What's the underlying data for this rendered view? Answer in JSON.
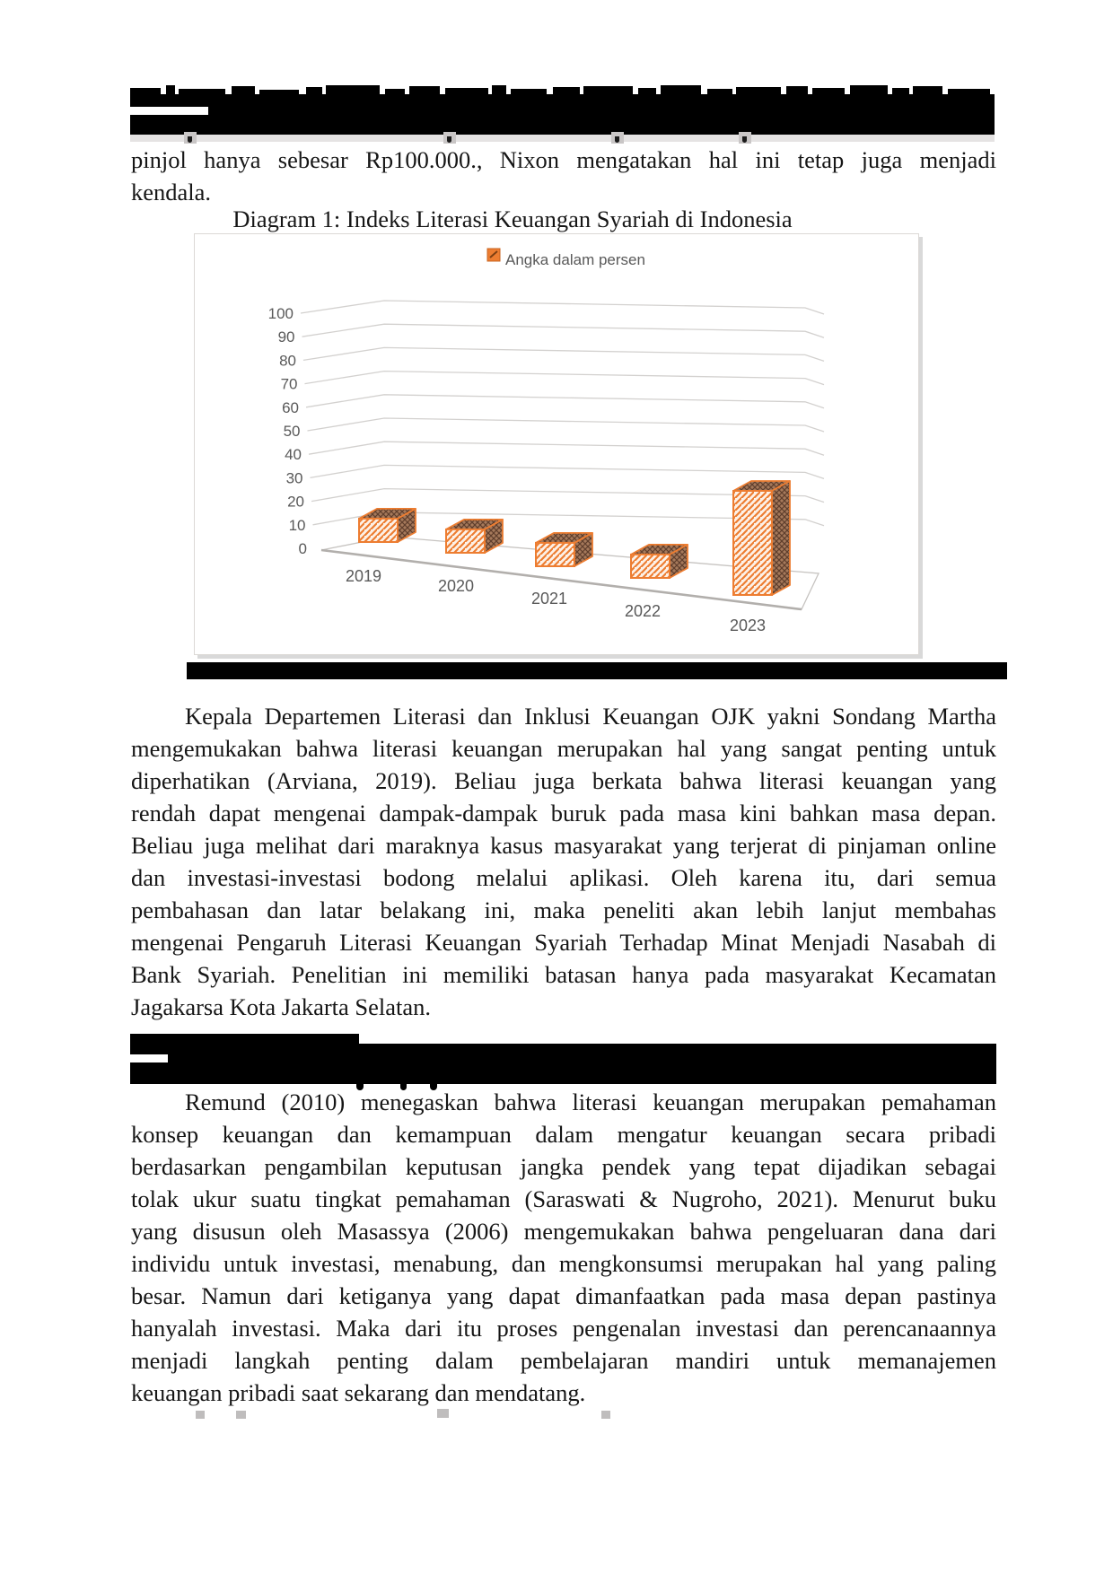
{
  "page": {
    "kind": "scanned-document-page",
    "background": "#ffffff"
  },
  "intro_paragraph": {
    "lines": [
      "pinjol hanya sebesar Rp100.000., Nixon mengatakan hal ini tetap juga menjadi",
      "kendala."
    ]
  },
  "figure": {
    "caption": "Diagram 1: Indeks Literasi Keuangan Syariah di Indonesia",
    "source_caption_redacted": true
  },
  "kepala_paragraph": {
    "lines": [
      "Kepala Departemen Literasi dan Inklusi Keuangan OJK yakni Sondang Martha",
      "mengemukakan bahwa literasi keuangan merupakan hal yang sangat penting untuk",
      "diperhatikan (Arviana, 2019). Beliau juga berkata bahwa literasi keuangan yang",
      "rendah dapat mengenai dampak-dampak buruk pada masa kini bahkan masa depan.",
      "Beliau juga melihat dari maraknya kasus masyarakat yang terjerat di pinjaman online",
      "dan investasi-investasi bodong melalui aplikasi. Oleh karena itu, dari semua",
      "pembahasan dan latar belakang ini, maka peneliti akan lebih lanjut membahas",
      "mengenai Pengaruh Literasi Keuangan Syariah Terhadap Minat Menjadi Nasabah di",
      "Bank Syariah. Penelitian ini memiliki batasan hanya pada masyarakat Kecamatan",
      "Jagakarsa Kota Jakarta Selatan."
    ]
  },
  "remund_paragraph": {
    "lines": [
      "Remund (2010) menegaskan bahwa literasi keuangan merupakan pemahaman",
      "konsep keuangan dan kemampuan dalam mengatur keuangan secara pribadi",
      "berdasarkan pengambilan keputusan jangka pendek yang tepat dijadikan sebagai",
      "tolak ukur suatu tingkat pemahaman (Saraswati & Nugroho, 2021). Menurut buku",
      "yang disusun oleh Masassya (2006) mengemukakan bahwa pengeluaran dana dari",
      "individu untuk investasi, menabung, dan mengkonsumsi merupakan hal yang paling",
      "besar. Namun dari ketiganya yang dapat dimanfaatkan pada masa depan pastinya",
      "hanyalah investasi. Maka dari itu proses pengenalan investasi dan perencanaannya",
      "menjadi langkah penting dalam pembelajaran mandiri untuk memanajemen",
      "keuangan pribadi saat sekarang dan mendatang."
    ]
  },
  "chart_data": {
    "type": "bar",
    "subtype": "3d-column",
    "title": "Diagram 1: Indeks Literasi Keuangan Syariah di Indonesia",
    "legend": [
      {
        "label": "Angka dalam persen",
        "color": "#ED7D31"
      }
    ],
    "legend_position": "top-center",
    "categories": [
      "2019",
      "2020",
      "2021",
      "2022",
      "2023"
    ],
    "values": [
      9,
      9,
      9,
      9,
      40
    ],
    "unit": "persen",
    "ylim": [
      0,
      100
    ],
    "ytick_step": 10,
    "yticks": [
      0,
      10,
      20,
      30,
      40,
      50,
      60,
      70,
      80,
      90,
      100
    ],
    "grid": true,
    "bar_color": "#ED7D31",
    "bar_fill_pattern": "diagonal-hatch",
    "axis_label_color": "#595959"
  }
}
